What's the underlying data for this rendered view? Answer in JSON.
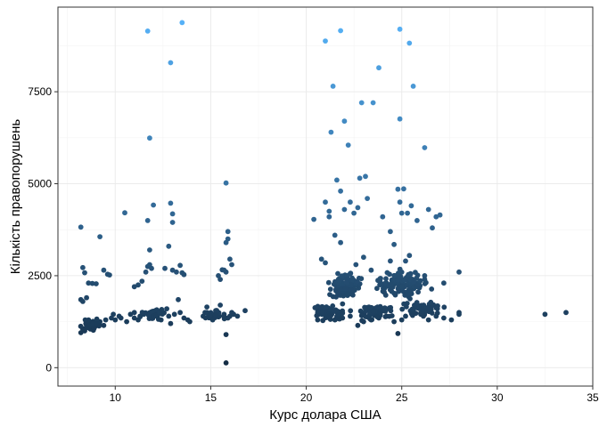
{
  "chart_data": {
    "type": "scatter",
    "title": "",
    "xlabel": "Курс долара США",
    "ylabel": "Кількість правопорушень",
    "xlim": [
      7,
      35
    ],
    "ylim": [
      -500,
      9800
    ],
    "x_ticks": [
      10,
      15,
      20,
      25,
      30,
      35
    ],
    "y_ticks": [
      0,
      2500,
      5000,
      7500
    ],
    "x_tick_labels": [
      "10",
      "15",
      "20",
      "25",
      "30",
      "35"
    ],
    "y_tick_labels": [
      "0",
      "2500",
      "5000",
      "7500"
    ],
    "grid": true,
    "legend": "none",
    "color_scale": {
      "low": "#132B43",
      "high": "#56B1F7",
      "min": 0,
      "max": 9400
    },
    "points": [
      [
        8.2,
        3820
      ],
      [
        8.3,
        2720
      ],
      [
        8.4,
        2580
      ],
      [
        8.6,
        2300
      ],
      [
        8.8,
        2290
      ],
      [
        9.0,
        2280
      ],
      [
        9.2,
        3560
      ],
      [
        9.4,
        2650
      ],
      [
        9.6,
        2540
      ],
      [
        9.7,
        2520
      ],
      [
        8.2,
        1850
      ],
      [
        8.3,
        1800
      ],
      [
        8.5,
        1900
      ],
      [
        8.6,
        1300
      ],
      [
        8.7,
        1200
      ],
      [
        8.8,
        1100
      ],
      [
        9.0,
        1150
      ],
      [
        9.2,
        1250
      ],
      [
        9.5,
        1300
      ],
      [
        9.8,
        1350
      ],
      [
        10.2,
        1400
      ],
      [
        10.5,
        4210
      ],
      [
        10.8,
        1450
      ],
      [
        11.0,
        1350
      ],
      [
        11.2,
        1300
      ],
      [
        11.0,
        2200
      ],
      [
        11.2,
        2250
      ],
      [
        11.4,
        2350
      ],
      [
        11.6,
        2600
      ],
      [
        11.7,
        2750
      ],
      [
        11.8,
        2800
      ],
      [
        11.8,
        3200
      ],
      [
        11.9,
        2700
      ],
      [
        11.7,
        4000
      ],
      [
        12.0,
        4420
      ],
      [
        11.8,
        6240
      ],
      [
        11.7,
        9150
      ],
      [
        12.5,
        1500
      ],
      [
        12.8,
        1400
      ],
      [
        12.9,
        1200
      ],
      [
        12.6,
        2700
      ],
      [
        12.8,
        3300
      ],
      [
        12.9,
        4470
      ],
      [
        13.0,
        4180
      ],
      [
        13.0,
        3950
      ],
      [
        13.0,
        2650
      ],
      [
        13.2,
        2600
      ],
      [
        13.4,
        2780
      ],
      [
        13.5,
        2580
      ],
      [
        13.6,
        2530
      ],
      [
        12.9,
        8290
      ],
      [
        13.5,
        9380
      ],
      [
        13.4,
        1500
      ],
      [
        13.8,
        1300
      ],
      [
        14.6,
        1400
      ],
      [
        14.8,
        1500
      ],
      [
        15.0,
        1350
      ],
      [
        15.2,
        1450
      ],
      [
        15.4,
        2500
      ],
      [
        15.5,
        2400
      ],
      [
        15.6,
        2660
      ],
      [
        15.8,
        2600
      ],
      [
        15.8,
        3400
      ],
      [
        15.9,
        3700
      ],
      [
        15.9,
        3500
      ],
      [
        15.8,
        5020
      ],
      [
        16.0,
        2950
      ],
      [
        16.1,
        2800
      ],
      [
        15.7,
        2650
      ],
      [
        16.0,
        1400
      ],
      [
        15.8,
        130
      ],
      [
        15.8,
        900
      ],
      [
        16.2,
        1450
      ],
      [
        16.8,
        1550
      ],
      [
        20.4,
        4030
      ],
      [
        20.6,
        1300
      ],
      [
        20.8,
        2950
      ],
      [
        21.0,
        2850
      ],
      [
        21.0,
        4500
      ],
      [
        21.2,
        4250
      ],
      [
        21.2,
        4100
      ],
      [
        21.3,
        6400
      ],
      [
        21.4,
        7650
      ],
      [
        21.6,
        5100
      ],
      [
        21.8,
        4800
      ],
      [
        21.0,
        8880
      ],
      [
        21.8,
        9160
      ],
      [
        22.0,
        6700
      ],
      [
        22.0,
        4300
      ],
      [
        22.2,
        6050
      ],
      [
        22.3,
        4500
      ],
      [
        22.5,
        4200
      ],
      [
        22.7,
        4350
      ],
      [
        22.8,
        5150
      ],
      [
        22.9,
        7200
      ],
      [
        23.1,
        5200
      ],
      [
        23.2,
        4600
      ],
      [
        23.5,
        7200
      ],
      [
        23.8,
        8150
      ],
      [
        24.0,
        4100
      ],
      [
        24.2,
        2300
      ],
      [
        24.4,
        3700
      ],
      [
        24.6,
        3350
      ],
      [
        24.8,
        4850
      ],
      [
        24.9,
        4500
      ],
      [
        24.9,
        6760
      ],
      [
        24.9,
        9200
      ],
      [
        25.0,
        4200
      ],
      [
        25.1,
        4860
      ],
      [
        25.3,
        4200
      ],
      [
        25.4,
        8820
      ],
      [
        25.5,
        4400
      ],
      [
        25.6,
        7650
      ],
      [
        25.8,
        4000
      ],
      [
        26.2,
        5980
      ],
      [
        26.4,
        4300
      ],
      [
        26.6,
        3800
      ],
      [
        26.8,
        4100
      ],
      [
        27.0,
        4150
      ],
      [
        21.8,
        3400
      ],
      [
        21.5,
        3600
      ],
      [
        22.6,
        2800
      ],
      [
        23.0,
        3000
      ],
      [
        23.4,
        2650
      ],
      [
        24.4,
        2900
      ],
      [
        25.2,
        2900
      ],
      [
        25.4,
        3050
      ],
      [
        26.2,
        2500
      ],
      [
        27.2,
        2300
      ],
      [
        28.0,
        2600
      ],
      [
        28.0,
        1500
      ],
      [
        28.0,
        1450
      ],
      [
        27.6,
        1300
      ],
      [
        27.2,
        1350
      ],
      [
        26.8,
        1400
      ],
      [
        26.4,
        1300
      ],
      [
        26.0,
        1450
      ],
      [
        25.6,
        1500
      ],
      [
        25.2,
        1400
      ],
      [
        25.0,
        1300
      ],
      [
        24.8,
        930
      ],
      [
        24.6,
        1250
      ],
      [
        24.2,
        1400
      ],
      [
        24.0,
        1550
      ],
      [
        23.8,
        1350
      ],
      [
        23.4,
        1300
      ],
      [
        23.0,
        1250
      ],
      [
        22.7,
        1150
      ],
      [
        22.3,
        1400
      ],
      [
        21.9,
        1350
      ],
      [
        21.5,
        1300
      ],
      [
        21.0,
        1450
      ],
      [
        20.6,
        1500
      ],
      [
        20.8,
        1650
      ],
      [
        32.5,
        1450
      ],
      [
        33.6,
        1500
      ],
      [
        8.2,
        950
      ],
      [
        8.3,
        1050
      ],
      [
        8.4,
        1000
      ],
      [
        8.5,
        1100
      ],
      [
        8.6,
        1150
      ],
      [
        8.7,
        1050
      ],
      [
        8.9,
        1200
      ],
      [
        9.1,
        1250
      ],
      [
        9.4,
        1150
      ],
      [
        9.9,
        1450
      ],
      [
        10.0,
        1300
      ],
      [
        10.3,
        1350
      ],
      [
        10.6,
        1250
      ],
      [
        11.0,
        1500
      ],
      [
        11.3,
        1400
      ],
      [
        11.5,
        1450
      ],
      [
        11.8,
        1350
      ],
      [
        12.1,
        1550
      ],
      [
        12.2,
        1400
      ],
      [
        12.4,
        1300
      ],
      [
        12.7,
        1600
      ],
      [
        13.1,
        1450
      ],
      [
        13.3,
        1850
      ],
      [
        13.6,
        1350
      ],
      [
        13.9,
        1250
      ],
      [
        14.8,
        1650
      ],
      [
        15.1,
        1300
      ],
      [
        15.3,
        1500
      ],
      [
        15.5,
        1700
      ],
      [
        15.7,
        1450
      ],
      [
        15.9,
        1350
      ],
      [
        16.1,
        1500
      ],
      [
        16.4,
        1400
      ]
    ],
    "dense_clusters": [
      {
        "x_center": 22.0,
        "x_spread": 0.8,
        "y_center": 2250,
        "y_spread": 320,
        "count": 110
      },
      {
        "x_center": 25.0,
        "x_spread": 1.1,
        "y_center": 2250,
        "y_spread": 320,
        "count": 130
      },
      {
        "x_center": 21.2,
        "x_spread": 0.8,
        "y_center": 1500,
        "y_spread": 180,
        "count": 70
      },
      {
        "x_center": 23.6,
        "x_spread": 0.9,
        "y_center": 1500,
        "y_spread": 170,
        "count": 60
      },
      {
        "x_center": 26.0,
        "x_spread": 1.0,
        "y_center": 1600,
        "y_spread": 180,
        "count": 45
      },
      {
        "x_center": 12.0,
        "x_spread": 0.6,
        "y_center": 1450,
        "y_spread": 150,
        "count": 35
      },
      {
        "x_center": 8.8,
        "x_spread": 0.5,
        "y_center": 1150,
        "y_spread": 130,
        "count": 35
      },
      {
        "x_center": 15.2,
        "x_spread": 0.5,
        "y_center": 1450,
        "y_spread": 130,
        "count": 30
      }
    ]
  }
}
